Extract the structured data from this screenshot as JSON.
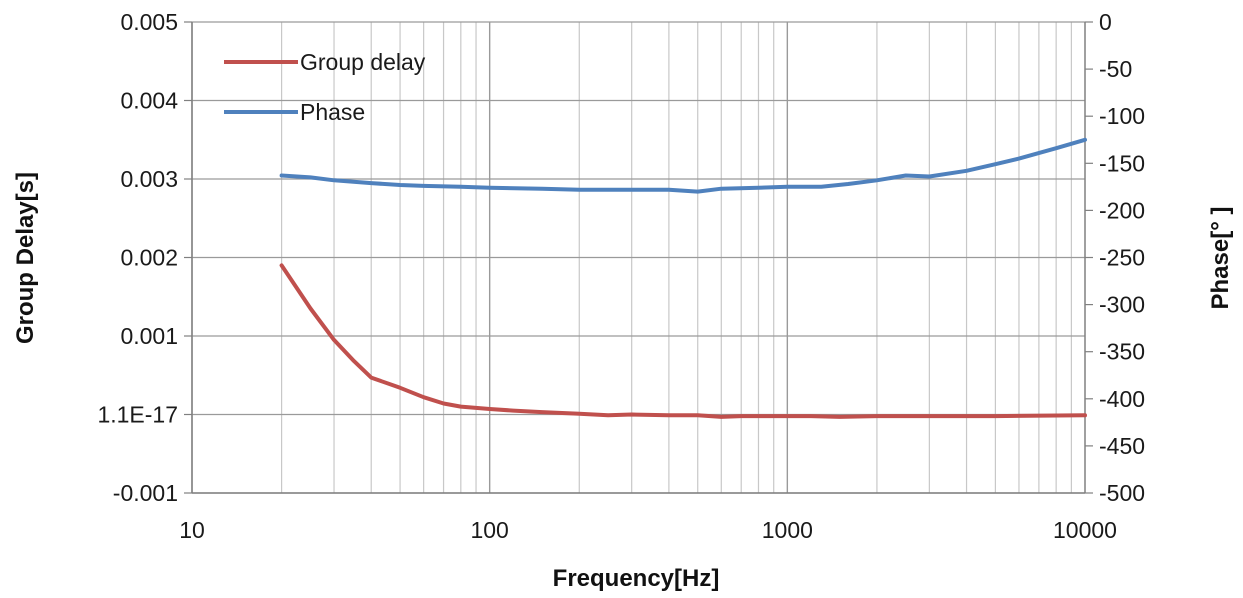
{
  "chart_data": {
    "type": "line",
    "xlabel": "Frequency[Hz]",
    "ylabel": "Group Delay[s]",
    "y2label": "Phase[° ]",
    "x_scale": "log",
    "xlim": [
      10,
      10000
    ],
    "ylim": [
      -0.001,
      0.005
    ],
    "y2lim": [
      -500,
      0
    ],
    "x_ticks": [
      10,
      100,
      1000,
      10000
    ],
    "x_tick_labels": [
      "10",
      "100",
      "1000",
      "10000"
    ],
    "y_ticks": [
      -0.001,
      0.0,
      0.001,
      0.002,
      0.003,
      0.004,
      0.005
    ],
    "y_tick_labels": [
      "-0.001",
      "1.1E-17",
      "0.001",
      "0.002",
      "0.003",
      "0.004",
      "0.005"
    ],
    "y2_ticks": [
      0,
      -50,
      -100,
      -150,
      -200,
      -250,
      -300,
      -350,
      -400,
      -450,
      -500
    ],
    "y2_tick_labels": [
      "0",
      "-50",
      "-100",
      "-150",
      "-200",
      "-250",
      "-300",
      "-350",
      "-400",
      "-450",
      "-500"
    ],
    "grid": true,
    "legend_position": "top-left",
    "series": [
      {
        "name": "Group delay",
        "axis": "left",
        "color": "#c0504d",
        "x": [
          20,
          25,
          30,
          35,
          40,
          50,
          60,
          70,
          80,
          100,
          120,
          150,
          200,
          250,
          300,
          400,
          500,
          600,
          700,
          800,
          1000,
          1200,
          1500,
          2000,
          3000,
          5000,
          10000
        ],
        "y": [
          0.0019,
          0.00135,
          0.00095,
          0.00068,
          0.00047,
          0.00034,
          0.00022,
          0.00014,
          0.0001,
          7e-05,
          5e-05,
          3e-05,
          1e-05,
          -1e-05,
          0.0,
          -1e-05,
          -1e-05,
          -3e-05,
          -2e-05,
          -2e-05,
          -2e-05,
          -2e-05,
          -3e-05,
          -2e-05,
          -2e-05,
          -2e-05,
          -1e-05
        ]
      },
      {
        "name": "Phase",
        "axis": "right",
        "color": "#4f81bd",
        "x": [
          20,
          25,
          30,
          40,
          50,
          60,
          80,
          100,
          150,
          200,
          300,
          400,
          500,
          600,
          800,
          1000,
          1300,
          1600,
          2000,
          2500,
          3000,
          4000,
          5000,
          6000,
          8000,
          10000
        ],
        "y": [
          -163,
          -165,
          -168,
          -171,
          -173,
          -174,
          -175,
          -176,
          -177,
          -178,
          -178,
          -178,
          -180,
          -177,
          -176,
          -175,
          -175,
          -172,
          -168,
          -163,
          -164,
          -158,
          -151,
          -145,
          -134,
          -125
        ]
      }
    ]
  }
}
